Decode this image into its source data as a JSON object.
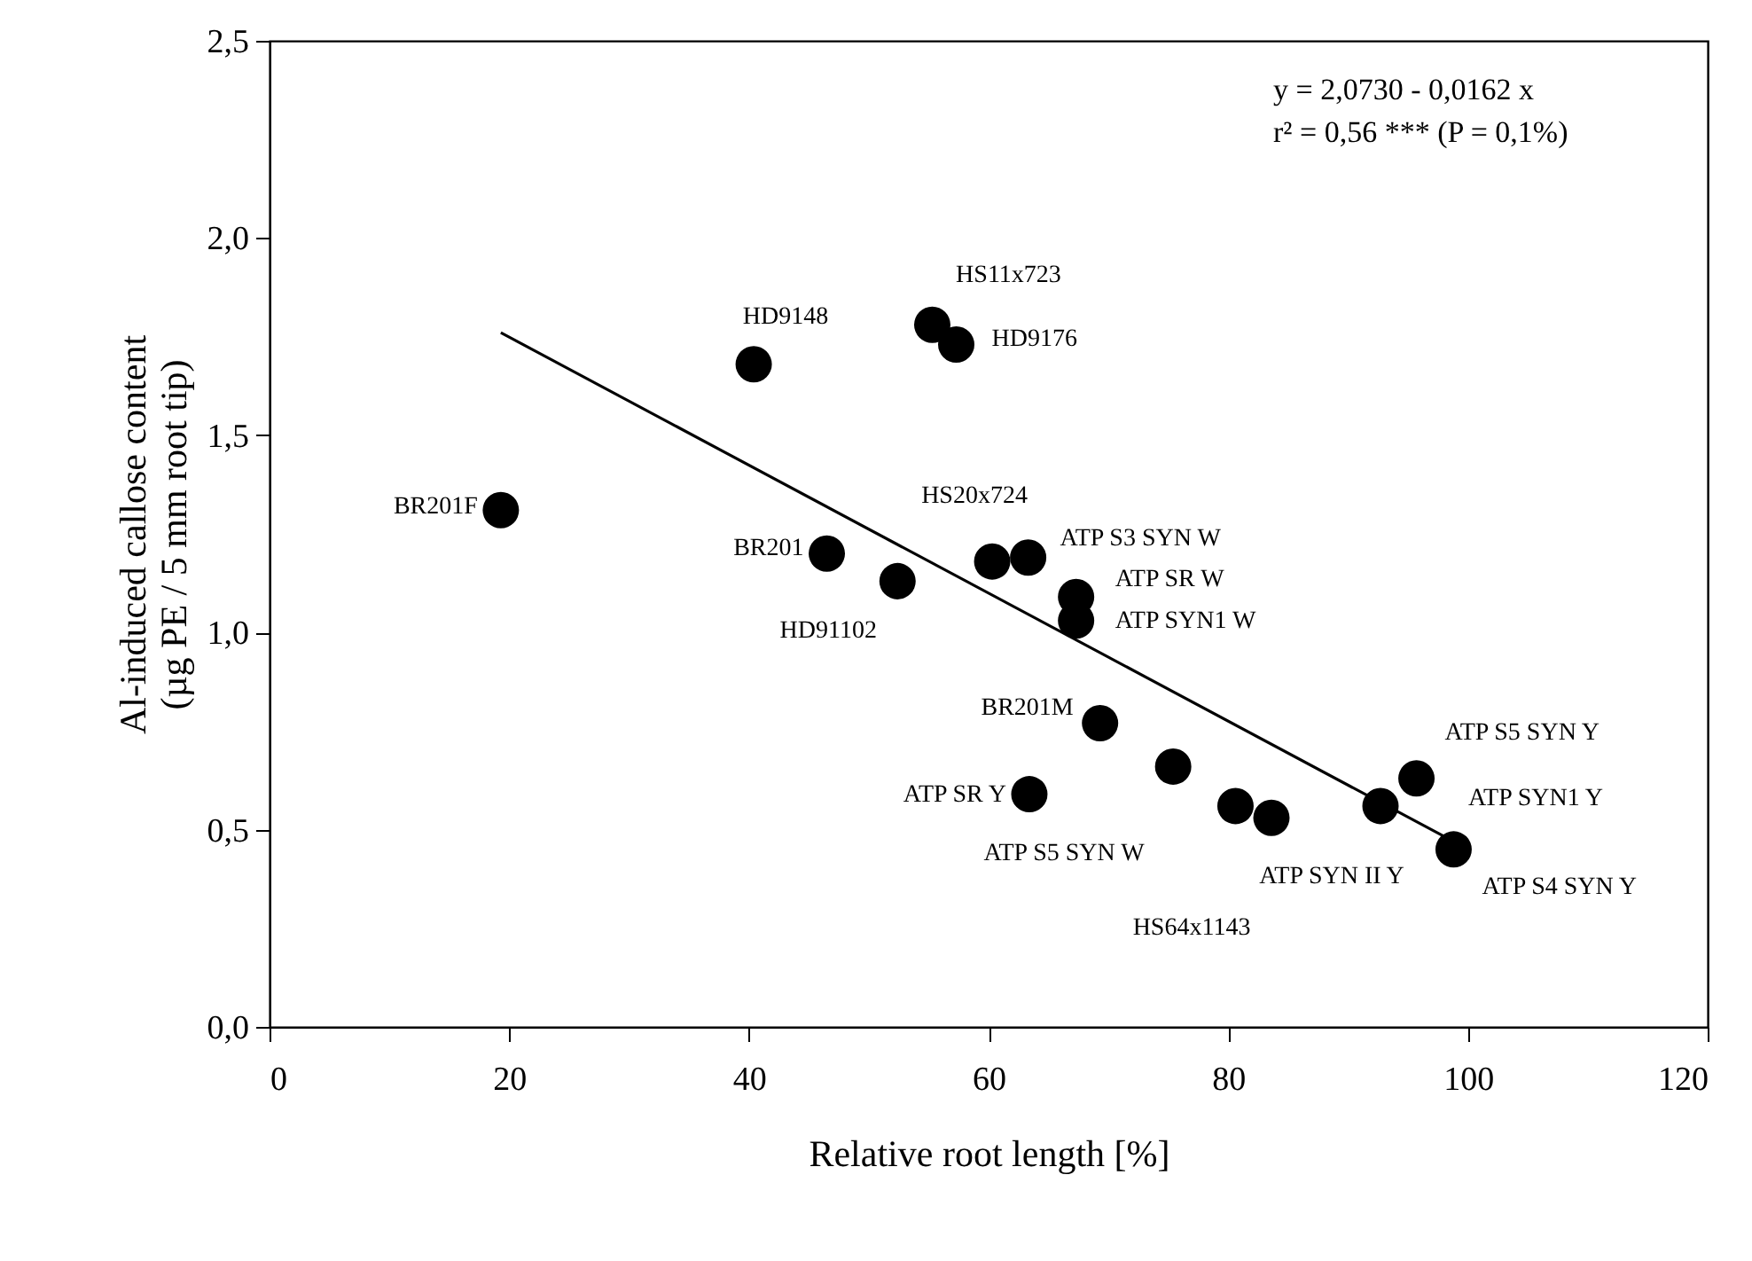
{
  "chart_data": {
    "type": "scatter",
    "xlabel": "Relative root length [%]",
    "ylabel": "Al-induced callose content\n(µg PE / 5 mm root tip)",
    "xlim": [
      0,
      120
    ],
    "xticks": [
      0,
      20,
      40,
      60,
      80,
      100,
      120
    ],
    "ylim": [
      0,
      2.5
    ],
    "yticks": [
      {
        "value": 0,
        "label": "0,0"
      },
      {
        "value": 0.5,
        "label": "0,5"
      },
      {
        "value": 1,
        "label": "1,0"
      },
      {
        "value": 1.5,
        "label": "1,5"
      },
      {
        "value": 2,
        "label": "2,0"
      },
      {
        "value": 2.5,
        "label": "2,5"
      }
    ],
    "grid": false,
    "series": [
      {
        "color": "#000000",
        "marker": "circle",
        "x": [
          19.3,
          40.4,
          46.5,
          52.4,
          55.3,
          57.3,
          60.3,
          63.3,
          67.3,
          67.3,
          69.3,
          63.4,
          75.4,
          80.6,
          83.6,
          92.7,
          95.7,
          98.8
        ],
        "values": [
          1.31,
          1.68,
          1.2,
          1.13,
          1.78,
          1.73,
          1.18,
          1.19,
          1.09,
          1.03,
          0.77,
          0.59,
          0.66,
          0.56,
          0.53,
          0.56,
          0.63,
          0.45
        ]
      },
      {
        "type": "line",
        "color": "#000000",
        "marker": "none",
        "line_style": "solid",
        "x": [
          19.3,
          98.8
        ],
        "values": [
          1.76,
          0.47
        ]
      }
    ],
    "annotations": [
      {
        "text": "BR201F",
        "x": 19.3,
        "y": 1.31
      },
      {
        "text": "HD9148",
        "x": 40.4,
        "y": 1.68
      },
      {
        "text": "BR201",
        "x": 46.5,
        "y": 1.2
      },
      {
        "text": "HD91102",
        "x": 52.4,
        "y": 1.13
      },
      {
        "text": "HS11x723",
        "x": 55.3,
        "y": 1.78
      },
      {
        "text": "HD9176",
        "x": 57.3,
        "y": 1.73
      },
      {
        "text": "HS20x724",
        "x": 60.3,
        "y": 1.18
      },
      {
        "text": "ATP S3 SYN W",
        "x": 63.3,
        "y": 1.19
      },
      {
        "text": "ATP SR W",
        "x": 67.3,
        "y": 1.09
      },
      {
        "text": "ATP SYN1 W",
        "x": 67.3,
        "y": 1.03
      },
      {
        "text": "BR201M",
        "x": 69.3,
        "y": 0.77
      },
      {
        "text": "ATP SR Y",
        "x": 63.4,
        "y": 0.59
      },
      {
        "text": "ATP SYN II Y",
        "x": 83.6,
        "y": 0.53
      },
      {
        "text": "ATP S5 SYN Y",
        "x": 95.7,
        "y": 0.63
      },
      {
        "text": "ATP S4 SYN Y",
        "x": 98.8,
        "y": 0.45
      },
      "ATP S5 SYN W",
      "HS64x1143",
      "ATP SYN1 Y",
      "y = 2,0730 - 0,0162 x",
      "r² = 0,56 *** (P = 0,1%)"
    ]
  }
}
